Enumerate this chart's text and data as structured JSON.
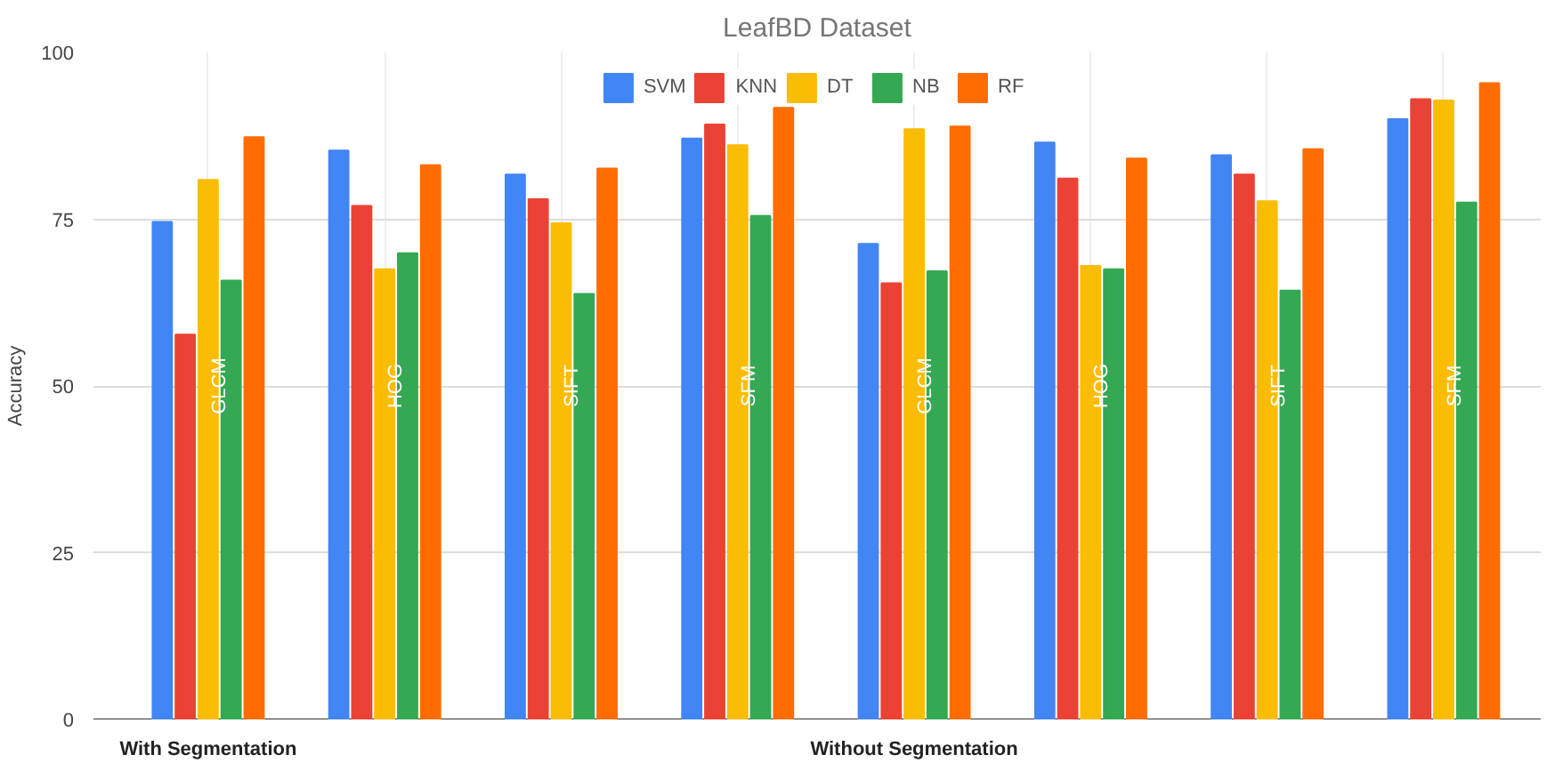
{
  "chart_data": {
    "type": "bar",
    "title": "LeafBD Dataset",
    "ylabel": "Accuracy",
    "categories": [
      "GLCM",
      "HOG",
      "SIFT",
      "SFM",
      "GLCM",
      "HOG",
      "SIFT",
      "SFM"
    ],
    "series": [
      {
        "name": "SVM",
        "color": "#4285f4",
        "values": [
          74.6,
          85.3,
          81.7,
          87.1,
          71.3,
          86.5,
          84.6,
          90.0
        ]
      },
      {
        "name": "KNN",
        "color": "#ea4335",
        "values": [
          57.7,
          77.0,
          78.0,
          89.2,
          65.4,
          81.1,
          81.7,
          93.0
        ]
      },
      {
        "name": "DT",
        "color": "#fbbc04",
        "values": [
          80.9,
          67.5,
          74.4,
          86.1,
          88.5,
          68.0,
          77.7,
          92.8
        ]
      },
      {
        "name": "NB",
        "color": "#34a853",
        "values": [
          65.8,
          69.9,
          63.8,
          75.5,
          67.2,
          67.5,
          64.3,
          77.5
        ]
      },
      {
        "name": "RF",
        "color": "#ff6d01",
        "values": [
          87.3,
          83.1,
          82.6,
          91.7,
          88.9,
          84.1,
          85.5,
          95.4
        ]
      }
    ],
    "annotations": [
      "With Segmentation",
      "Without Segmentation"
    ],
    "ylim": [
      0,
      100
    ],
    "yticks": [
      0,
      25,
      50,
      75,
      100
    ],
    "grid": true,
    "legend": "top"
  }
}
